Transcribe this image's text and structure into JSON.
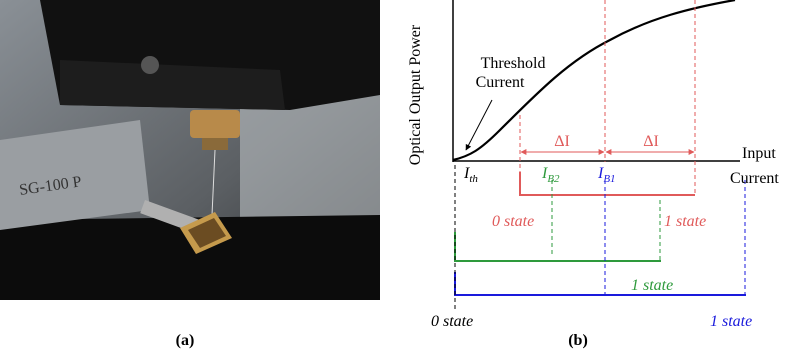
{
  "figure": {
    "panel_a": {
      "label": "(a)"
    },
    "panel_b": {
      "label": "(b)",
      "y_axis_label": "Optical Output Power",
      "x_axis_label": [
        "Input",
        "Current"
      ],
      "threshold_note": [
        "Threshold",
        "Current"
      ],
      "delta_labels": [
        "ΔI",
        "ΔI"
      ],
      "currents": [
        {
          "main": "I",
          "sub": "th"
        },
        {
          "main": "I",
          "sub": "B2"
        },
        {
          "main": "I",
          "sub": "B1"
        }
      ],
      "states": {
        "red": [
          "0 state",
          "1 state"
        ],
        "green": [
          "1 state"
        ],
        "blue": [
          "0 state",
          "1 state"
        ]
      }
    }
  }
}
